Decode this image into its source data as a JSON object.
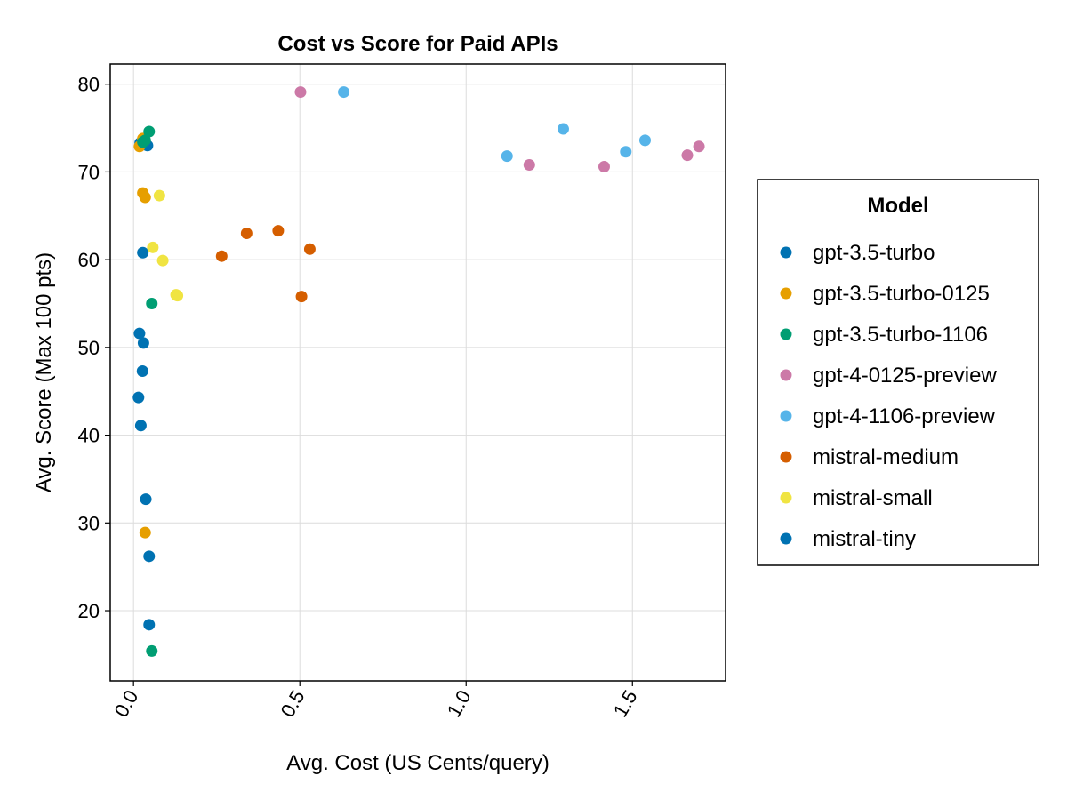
{
  "chart_data": {
    "type": "scatter",
    "title": "Cost vs Score for Paid APIs",
    "xlabel": "Avg. Cost (US Cents/query)",
    "ylabel": "Avg. Score (Max 100 pts)",
    "xlim": [
      -0.07,
      1.78
    ],
    "ylim": [
      12,
      82.3
    ],
    "xticks": [
      0.0,
      0.5,
      1.0,
      1.5
    ],
    "xtick_labels": [
      "0.0",
      "0.5",
      "1.0",
      "1.5"
    ],
    "yticks": [
      20,
      30,
      40,
      50,
      60,
      70,
      80
    ],
    "ytick_labels": [
      "20",
      "30",
      "40",
      "50",
      "60",
      "70",
      "80"
    ],
    "grid": true,
    "legend": {
      "title": "Model",
      "placement": "right"
    },
    "series": [
      {
        "name": "gpt-3.5-turbo",
        "color": "#0072b2",
        "points": [
          [
            0.02,
            73.3
          ],
          [
            0.042,
            73.0
          ],
          [
            0.028,
            60.8
          ],
          [
            0.018,
            51.6
          ],
          [
            0.027,
            47.3
          ]
        ]
      },
      {
        "name": "gpt-3.5-turbo-0125",
        "color": "#e69f00",
        "points": [
          [
            0.018,
            72.9
          ],
          [
            0.028,
            73.8
          ],
          [
            0.028,
            67.6
          ],
          [
            0.035,
            67.1
          ],
          [
            0.035,
            28.9
          ]
        ]
      },
      {
        "name": "gpt-3.5-turbo-1106",
        "color": "#009e73",
        "points": [
          [
            0.047,
            74.6
          ],
          [
            0.035,
            73.6
          ],
          [
            0.028,
            73.4
          ],
          [
            0.055,
            55.0
          ],
          [
            0.055,
            15.4
          ]
        ]
      },
      {
        "name": "gpt-4-0125-preview",
        "color": "#cc79a7",
        "points": [
          [
            0.502,
            79.1
          ],
          [
            1.19,
            70.8
          ],
          [
            1.415,
            70.6
          ],
          [
            1.665,
            71.9
          ],
          [
            1.7,
            72.9
          ]
        ]
      },
      {
        "name": "gpt-4-1106-preview",
        "color": "#56b4e9",
        "points": [
          [
            0.632,
            79.1
          ],
          [
            1.123,
            71.8
          ],
          [
            1.292,
            74.9
          ],
          [
            1.48,
            72.3
          ],
          [
            1.538,
            73.6
          ]
        ]
      },
      {
        "name": "mistral-medium",
        "color": "#d55e00",
        "points": [
          [
            0.265,
            60.4
          ],
          [
            0.34,
            63.0
          ],
          [
            0.435,
            63.3
          ],
          [
            0.53,
            61.2
          ],
          [
            0.505,
            55.8
          ]
        ]
      },
      {
        "name": "mistral-small",
        "color": "#f0e442",
        "points": [
          [
            0.078,
            67.3
          ],
          [
            0.058,
            61.4
          ],
          [
            0.088,
            59.9
          ],
          [
            0.128,
            56.0
          ],
          [
            0.132,
            55.9
          ]
        ]
      },
      {
        "name": "mistral-tiny",
        "color": "#0072b2",
        "points": [
          [
            0.03,
            50.5
          ],
          [
            0.015,
            44.3
          ],
          [
            0.022,
            41.1
          ],
          [
            0.037,
            32.7
          ],
          [
            0.047,
            26.2
          ],
          [
            0.047,
            18.4
          ]
        ]
      }
    ]
  }
}
